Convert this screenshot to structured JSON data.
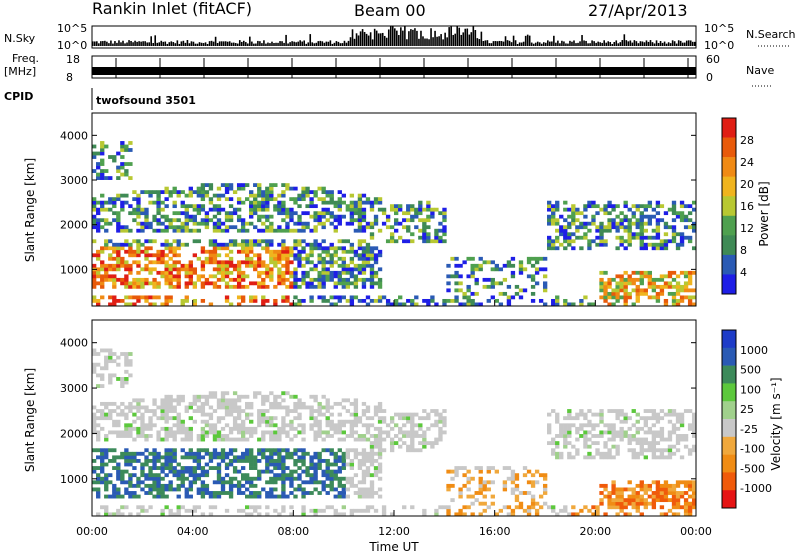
{
  "header": {
    "station": "Rankin Inlet (fitACF)",
    "beam": "Beam 00",
    "date": "27/Apr/2013"
  },
  "strips": {
    "nsky_label": "N.Sky",
    "nsky_ticks": [
      "10^5",
      "10^0"
    ],
    "nsearch_label": "N.Search",
    "nsearch_ticks": [
      "10^5",
      "10^0"
    ],
    "freq_label": "Freq.",
    "freq_unit": "[MHz]",
    "freq_ticks": [
      "18",
      "8"
    ],
    "nave_label": "Nave",
    "nave_ticks": [
      "60",
      "0"
    ],
    "cpid_label": "CPID",
    "cpid_value": "twofsound 3501"
  },
  "colors": {
    "power": [
      "#1e1ee6",
      "#2a5ab4",
      "#3f8a55",
      "#4fa04f",
      "#b8c832",
      "#f0b41e",
      "#f08a14",
      "#e85a0a",
      "#e01e14"
    ],
    "velocity": [
      "#e61414",
      "#f05a0a",
      "#f08c14",
      "#f0a83c",
      "#c8c8c8",
      "#a0d08c",
      "#5cc83c",
      "#3c8a5a",
      "#2a5ab4",
      "#1e3cc8"
    ]
  },
  "chart_data": [
    {
      "type": "heatmap",
      "panel": "power",
      "ylabel": "Slant Range [km]",
      "yticks": [
        "1000",
        "2000",
        "3000",
        "4000"
      ],
      "ylim": [
        180,
        4500
      ],
      "xlim": [
        0,
        24
      ],
      "colorbar_label": "Power [dB]",
      "colorbar_ticks": [
        "4",
        "8",
        "12",
        "16",
        "20",
        "24",
        "28"
      ],
      "color_range": [
        0,
        30
      ]
    },
    {
      "type": "heatmap",
      "panel": "velocity",
      "ylabel": "Slant Range [km]",
      "yticks": [
        "1000",
        "2000",
        "3000",
        "4000"
      ],
      "ylim": [
        180,
        4500
      ],
      "xlim": [
        0,
        24
      ],
      "xlabel": "Time UT",
      "xticks": [
        "00:00",
        "04:00",
        "08:00",
        "12:00",
        "16:00",
        "20:00",
        "00:00"
      ],
      "colorbar_label": "Velocity [m s⁻¹]",
      "colorbar_ticks": [
        "1000",
        "500",
        "100",
        "25",
        "-25",
        "-100",
        "-500",
        "-1000"
      ]
    }
  ]
}
